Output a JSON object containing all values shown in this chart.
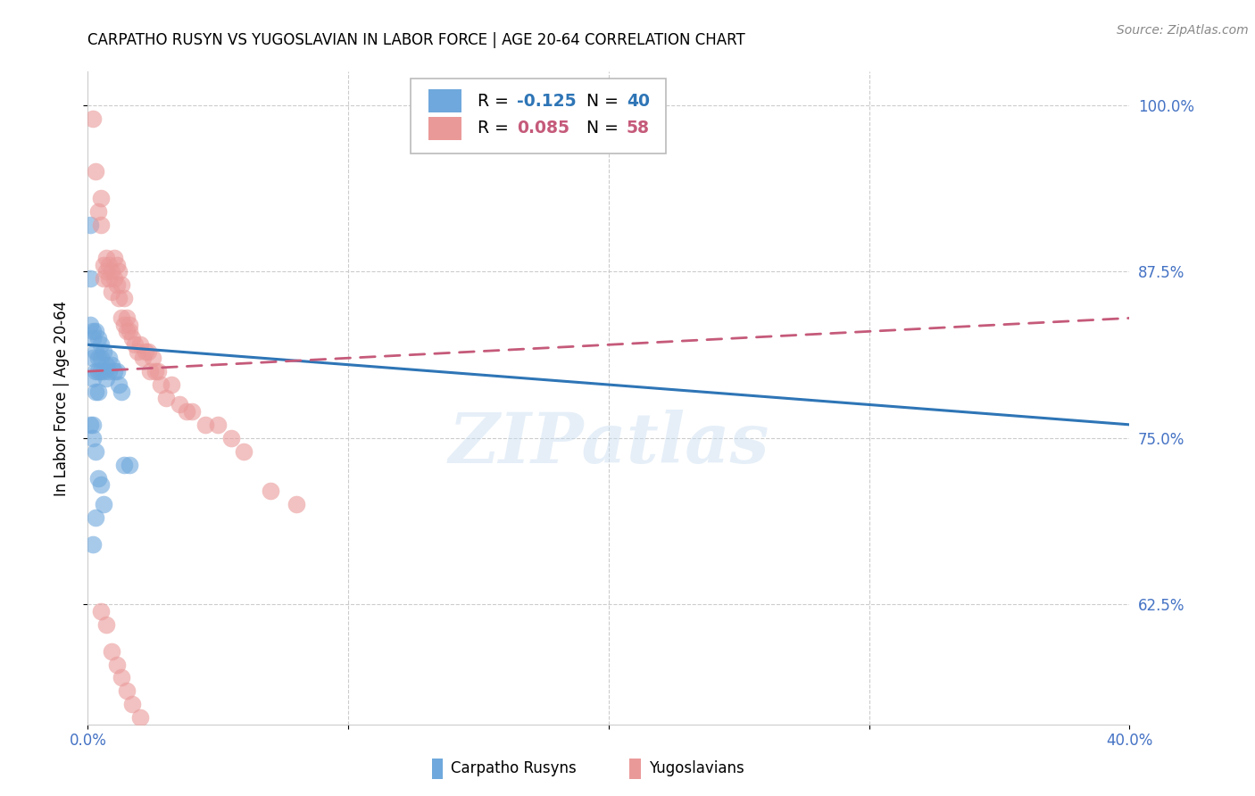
{
  "title": "CARPATHO RUSYN VS YUGOSLAVIAN IN LABOR FORCE | AGE 20-64 CORRELATION CHART",
  "source": "Source: ZipAtlas.com",
  "ylabel": "In Labor Force | Age 20-64",
  "x_min": 0.0,
  "x_max": 0.4,
  "y_min": 0.535,
  "y_max": 1.025,
  "y_ticks": [
    0.625,
    0.75,
    0.875,
    1.0
  ],
  "y_tick_labels": [
    "62.5%",
    "75.0%",
    "87.5%",
    "100.0%"
  ],
  "x_tick_labels_show": [
    "0.0%",
    "40.0%"
  ],
  "y_tick_color": "#4472c4",
  "watermark": "ZIPatlas",
  "carpatho_color": "#6fa8dc",
  "yugoslav_color": "#ea9999",
  "carpatho_line_color": "#2e75b6",
  "yugoslav_line_color": "#c55a7a",
  "legend_label_carpatho": "Carpatho Rusyns",
  "legend_label_yugoslav": "Yugoslavians",
  "carpatho_x": [
    0.001,
    0.001,
    0.001,
    0.002,
    0.002,
    0.002,
    0.002,
    0.002,
    0.003,
    0.003,
    0.003,
    0.003,
    0.004,
    0.004,
    0.004,
    0.004,
    0.005,
    0.005,
    0.005,
    0.006,
    0.006,
    0.007,
    0.007,
    0.008,
    0.008,
    0.009,
    0.01,
    0.011,
    0.012,
    0.013,
    0.001,
    0.002,
    0.003,
    0.004,
    0.005,
    0.006,
    0.014,
    0.016,
    0.003,
    0.002
  ],
  "carpatho_y": [
    0.91,
    0.87,
    0.835,
    0.83,
    0.825,
    0.81,
    0.795,
    0.76,
    0.83,
    0.815,
    0.8,
    0.785,
    0.825,
    0.81,
    0.8,
    0.785,
    0.82,
    0.81,
    0.8,
    0.815,
    0.8,
    0.805,
    0.795,
    0.81,
    0.8,
    0.805,
    0.8,
    0.8,
    0.79,
    0.785,
    0.76,
    0.75,
    0.74,
    0.72,
    0.715,
    0.7,
    0.73,
    0.73,
    0.69,
    0.67
  ],
  "yugoslav_x": [
    0.002,
    0.003,
    0.004,
    0.005,
    0.005,
    0.006,
    0.006,
    0.007,
    0.007,
    0.008,
    0.008,
    0.009,
    0.009,
    0.01,
    0.01,
    0.011,
    0.011,
    0.012,
    0.012,
    0.013,
    0.013,
    0.014,
    0.014,
    0.015,
    0.015,
    0.016,
    0.016,
    0.017,
    0.018,
    0.019,
    0.02,
    0.021,
    0.022,
    0.023,
    0.024,
    0.025,
    0.026,
    0.027,
    0.028,
    0.03,
    0.032,
    0.035,
    0.038,
    0.04,
    0.045,
    0.05,
    0.055,
    0.06,
    0.07,
    0.08,
    0.005,
    0.007,
    0.009,
    0.011,
    0.013,
    0.015,
    0.017,
    0.02
  ],
  "yugoslav_y": [
    0.99,
    0.95,
    0.92,
    0.93,
    0.91,
    0.88,
    0.87,
    0.885,
    0.875,
    0.88,
    0.87,
    0.875,
    0.86,
    0.885,
    0.87,
    0.88,
    0.865,
    0.875,
    0.855,
    0.865,
    0.84,
    0.855,
    0.835,
    0.84,
    0.83,
    0.835,
    0.83,
    0.825,
    0.82,
    0.815,
    0.82,
    0.81,
    0.815,
    0.815,
    0.8,
    0.81,
    0.8,
    0.8,
    0.79,
    0.78,
    0.79,
    0.775,
    0.77,
    0.77,
    0.76,
    0.76,
    0.75,
    0.74,
    0.71,
    0.7,
    0.62,
    0.61,
    0.59,
    0.58,
    0.57,
    0.56,
    0.55,
    0.54
  ],
  "blue_line_x": [
    0.0,
    0.4
  ],
  "blue_line_y": [
    0.82,
    0.76
  ],
  "pink_line_x": [
    0.0,
    0.4
  ],
  "pink_line_y": [
    0.8,
    0.84
  ]
}
